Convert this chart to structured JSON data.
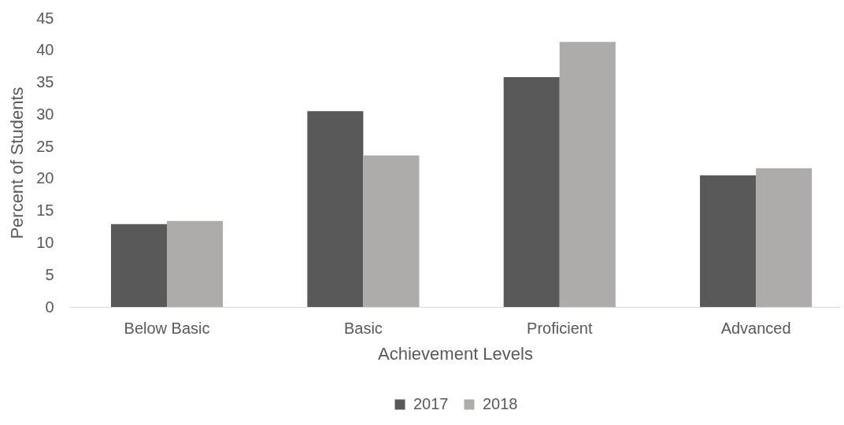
{
  "chart_data": {
    "type": "bar",
    "xlabel": "Achievement Levels",
    "ylabel": "Percent of Students",
    "categories": [
      "Below Basic",
      "Basic",
      "Proficient",
      "Advanced"
    ],
    "series": [
      {
        "name": "2017",
        "color": "#595959",
        "values": [
          12.9,
          30.5,
          35.8,
          20.5
        ]
      },
      {
        "name": "2018",
        "color": "#aeabab",
        "values": [
          13.4,
          23.6,
          41.3,
          21.6
        ]
      }
    ],
    "ylim": [
      0,
      45
    ],
    "yticks": [
      0,
      5,
      10,
      15,
      20,
      25,
      30,
      35,
      40,
      45
    ],
    "grid": false,
    "legend": "bottom"
  }
}
